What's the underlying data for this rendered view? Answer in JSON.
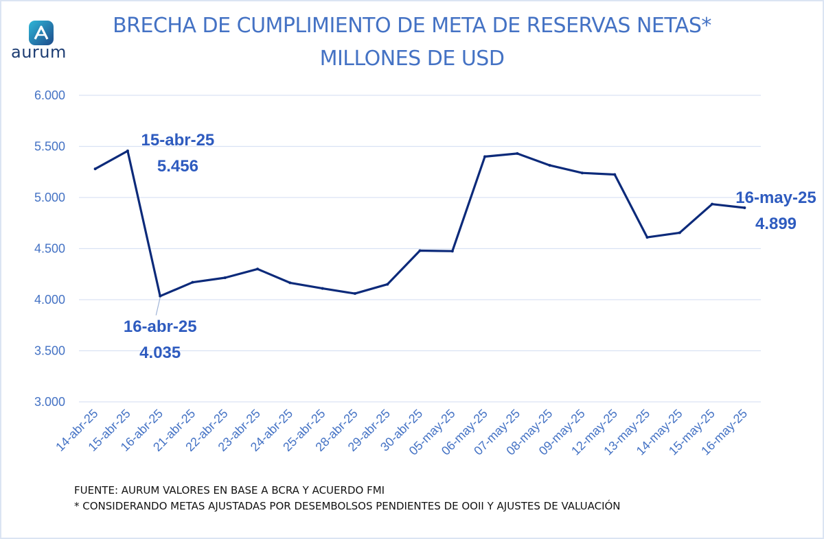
{
  "logo": {
    "name": "aurum"
  },
  "chart_data": {
    "type": "line",
    "title": "BRECHA DE CUMPLIMIENTO DE META DE RESERVAS NETAS*",
    "subtitle": "MILLONES DE USD",
    "xlabel": "",
    "ylabel": "",
    "ylim": [
      3000,
      6000
    ],
    "yticks": [
      3000,
      3500,
      4000,
      4500,
      5000,
      5500,
      6000
    ],
    "ytick_labels": [
      "3.000",
      "3.500",
      "4.000",
      "4.500",
      "5.000",
      "5.500",
      "6.000"
    ],
    "grid": true,
    "legend": "none",
    "categories": [
      "14-abr-25",
      "15-abr-25",
      "16-abr-25",
      "21-abr-25",
      "22-abr-25",
      "23-abr-25",
      "24-abr-25",
      "25-abr-25",
      "28-abr-25",
      "29-abr-25",
      "30-abr-25",
      "05-may-25",
      "06-may-25",
      "07-may-25",
      "08-may-25",
      "09-may-25",
      "12-may-25",
      "13-may-25",
      "14-may-25",
      "15-may-25",
      "16-may-25"
    ],
    "series": [
      {
        "values": [
          5280,
          5456,
          4035,
          4170,
          4215,
          4300,
          4165,
          4110,
          4060,
          4150,
          4480,
          4475,
          5400,
          5430,
          5315,
          5240,
          5225,
          4610,
          4655,
          4935,
          4899
        ],
        "color": "#0c2a7a"
      }
    ],
    "annotations": [
      {
        "date": "15-abr-25",
        "value": "5.456",
        "index": 1
      },
      {
        "date": "16-abr-25",
        "value": "4.035",
        "index": 2
      },
      {
        "date": "16-may-25",
        "value": "4.899",
        "index": 20
      }
    ]
  },
  "footnotes": {
    "source": "FUENTE: AURUM VALORES EN BASE A BCRA Y ACUERDO FMI",
    "note": "* CONSIDERANDO METAS AJUSTADAS POR DESEMBOLSOS PENDIENTES DE OOII Y AJUSTES DE VALUACIÓN"
  },
  "colors": {
    "title": "#4472c4",
    "line": "#0c2a7a",
    "grid": "#d9e2f3",
    "annotation": "#2e5bbf",
    "axis_labels": "#4472c4"
  }
}
